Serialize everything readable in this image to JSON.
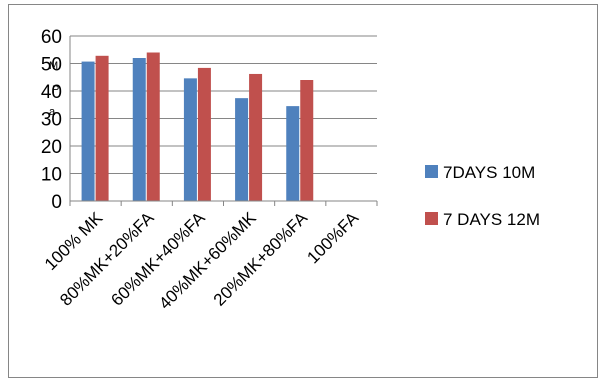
{
  "chart_data": {
    "type": "bar",
    "title": "",
    "ylabel": "M\nP\na",
    "xlabel": "",
    "categories": [
      "100% MK",
      "80%MK+20%FA",
      "60%MK+40%FA",
      "40%MK+60%MK",
      "20%MK+80%FA",
      "100%FA"
    ],
    "series": [
      {
        "name": "7DAYS 10M",
        "color": "#4F81BD",
        "values": [
          50.7,
          52.0,
          44.6,
          37.4,
          34.5,
          null
        ]
      },
      {
        "name": "7 DAYS 12M",
        "color": "#C0504D",
        "values": [
          52.8,
          54.0,
          48.4,
          46.2,
          44.0,
          null
        ]
      }
    ],
    "ylim": [
      0,
      60
    ],
    "yticks": [
      0,
      10,
      20,
      30,
      40,
      50,
      60
    ],
    "grid": true,
    "legend": "right"
  }
}
